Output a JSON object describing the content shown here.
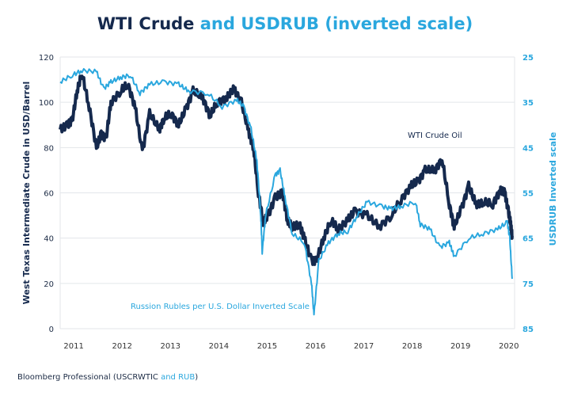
{
  "colors": {
    "wti": "#15294d",
    "rub": "#2aa7de",
    "grid": "#e3e6ea"
  },
  "chart_data": {
    "type": "line",
    "title_part1": "WTI Crude",
    "title_part2": "and USDRUB (inverted scale)",
    "ylabel": "West Texas Intermediate Crude in USD/Barrel",
    "y2label": "USDRUB Inverted scale",
    "ylim": [
      0,
      120
    ],
    "y2lim": [
      25,
      85
    ],
    "y2_inverted": true,
    "xlim": [
      2010.85,
      2020.25
    ],
    "yticks": [
      "0",
      "20",
      "40",
      "60",
      "80",
      "100",
      "120"
    ],
    "y2ticks": [
      "25",
      "35",
      "45",
      "55",
      "65",
      "75",
      "85"
    ],
    "xticks": [
      "2011",
      "2012",
      "2013",
      "2014",
      "2015",
      "2016",
      "2017",
      "2018",
      "2019",
      "2020"
    ],
    "grid": true,
    "annotations": {
      "wti": "WTI Crude Oil",
      "rub": "Russion Rubles per U.S. Dollar Inverted Scale"
    },
    "series": [
      {
        "name": "WTI Crude Oil",
        "axis": "left",
        "x": [
          2010.85,
          2011.0,
          2011.1,
          2011.2,
          2011.3,
          2011.45,
          2011.6,
          2011.7,
          2011.8,
          2011.9,
          2012.1,
          2012.25,
          2012.4,
          2012.55,
          2012.7,
          2012.9,
          2013.0,
          2013.15,
          2013.3,
          2013.45,
          2013.6,
          2013.8,
          2013.95,
          2014.1,
          2014.3,
          2014.45,
          2014.6,
          2014.75,
          2014.85,
          2014.95,
          2015.05,
          2015.15,
          2015.3,
          2015.45,
          2015.55,
          2015.65,
          2015.8,
          2015.9,
          2016.05,
          2016.15,
          2016.3,
          2016.45,
          2016.6,
          2016.8,
          2016.95,
          2017.2,
          2017.45,
          2017.7,
          2017.9,
          2018.1,
          2018.25,
          2018.4,
          2018.6,
          2018.75,
          2018.9,
          2019.0,
          2019.15,
          2019.3,
          2019.45,
          2019.6,
          2019.8,
          2019.95,
          2020.05,
          2020.12,
          2020.17,
          2020.2
        ],
        "values": [
          88,
          90,
          92,
          105,
          113,
          98,
          80,
          86,
          84,
          100,
          105,
          108,
          98,
          78,
          95,
          88,
          93,
          95,
          90,
          97,
          105,
          102,
          94,
          100,
          102,
          106,
          100,
          87,
          80,
          60,
          47,
          50,
          58,
          60,
          48,
          45,
          46,
          40,
          30,
          30,
          40,
          48,
          44,
          48,
          52,
          50,
          45,
          50,
          57,
          63,
          65,
          70,
          70,
          75,
          55,
          45,
          53,
          63,
          55,
          56,
          55,
          61,
          60,
          52,
          46,
          41
        ]
      },
      {
        "name": "Russion Rubles per U.S. Dollar Inverted Scale",
        "axis": "right",
        "x": [
          2010.85,
          2011.1,
          2011.3,
          2011.6,
          2011.75,
          2011.9,
          2012.1,
          2012.3,
          2012.5,
          2012.7,
          2013.0,
          2013.3,
          2013.5,
          2013.9,
          2014.2,
          2014.5,
          2014.65,
          2014.8,
          2014.92,
          2015.0,
          2015.03,
          2015.1,
          2015.3,
          2015.4,
          2015.5,
          2015.65,
          2015.9,
          2016.05,
          2016.1,
          2016.2,
          2016.4,
          2016.6,
          2016.8,
          2017.0,
          2017.2,
          2017.5,
          2017.7,
          2017.9,
          2018.2,
          2018.3,
          2018.5,
          2018.7,
          2018.9,
          2019.0,
          2019.3,
          2019.6,
          2019.9,
          2020.1,
          2020.15,
          2020.2
        ],
        "values": [
          30.5,
          29,
          28,
          28.2,
          32,
          30.5,
          29.5,
          29,
          33,
          31,
          30.5,
          31,
          32.5,
          33,
          36,
          34.5,
          36,
          41,
          48,
          60,
          68,
          60,
          51,
          50,
          56,
          64,
          66,
          75,
          82,
          70,
          66,
          64,
          63.5,
          60,
          57,
          58,
          58.5,
          58,
          57,
          62,
          63,
          67,
          66,
          69,
          65,
          64,
          63,
          61.5,
          65,
          74
        ]
      }
    ]
  },
  "footer": {
    "source": "Bloomberg Professional (USCRWTIC",
    "source_blue": "and RUB",
    "close": ")"
  }
}
